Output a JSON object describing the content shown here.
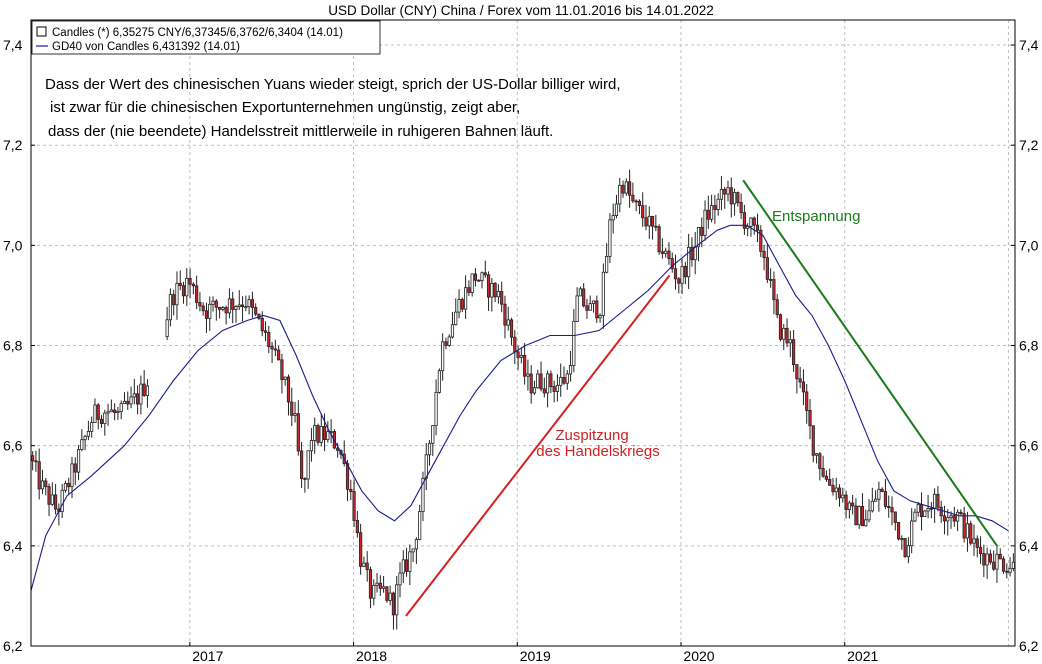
{
  "chart_data": {
    "type": "candlestick",
    "title": "USD Dollar (CNY) China / Forex vom 11.01.2016 bis 14.01.2022",
    "legend": [
      {
        "label": "Candles (*) 6,35275 CNY/6,37345/6,3762/6,3404 (14.01)",
        "color": "#000000",
        "symbol": "box"
      },
      {
        "label": "GD40 von Candles 6,431392 (14.01)",
        "color": "#1a1a8c",
        "symbol": "line"
      }
    ],
    "legend_placement": "top-left",
    "grid": true,
    "x_range": [
      2016.03,
      2022.04
    ],
    "ylim": [
      6.2,
      7.45
    ],
    "x_ticks": [
      {
        "x": 2017,
        "label": "2017"
      },
      {
        "x": 2018,
        "label": "2018"
      },
      {
        "x": 2019,
        "label": "2019"
      },
      {
        "x": 2020,
        "label": "2020"
      },
      {
        "x": 2021,
        "label": "2021"
      }
    ],
    "x_gridlines": [
      2017,
      2018,
      2019,
      2020,
      2021,
      2022
    ],
    "y_ticks": [
      {
        "y": 6.2,
        "label": "6,2"
      },
      {
        "y": 6.4,
        "label": "6,4"
      },
      {
        "y": 6.6,
        "label": "6,6"
      },
      {
        "y": 6.8,
        "label": "6,8"
      },
      {
        "y": 7.0,
        "label": "7,0"
      },
      {
        "y": 7.2,
        "label": "7,2"
      },
      {
        "y": 7.4,
        "label": "7,4"
      }
    ],
    "anchors": [
      [
        2016.03,
        6.58
      ],
      [
        2016.1,
        6.52
      ],
      [
        2016.2,
        6.47
      ],
      [
        2016.3,
        6.55
      ],
      [
        2016.42,
        6.66
      ],
      [
        2016.5,
        6.67
      ],
      [
        2016.58,
        6.66
      ],
      [
        2016.7,
        6.7
      ],
      [
        2016.8,
        6.76
      ],
      [
        2016.9,
        6.9
      ],
      [
        2017.0,
        6.93
      ],
      [
        2017.1,
        6.87
      ],
      [
        2017.2,
        6.88
      ],
      [
        2017.35,
        6.89
      ],
      [
        2017.42,
        6.85
      ],
      [
        2017.5,
        6.8
      ],
      [
        2017.58,
        6.73
      ],
      [
        2017.65,
        6.65
      ],
      [
        2017.7,
        6.5
      ],
      [
        2017.75,
        6.62
      ],
      [
        2017.85,
        6.62
      ],
      [
        2017.92,
        6.6
      ],
      [
        2018.0,
        6.5
      ],
      [
        2018.05,
        6.38
      ],
      [
        2018.12,
        6.3
      ],
      [
        2018.2,
        6.31
      ],
      [
        2018.25,
        6.28
      ],
      [
        2018.3,
        6.34
      ],
      [
        2018.38,
        6.4
      ],
      [
        2018.45,
        6.55
      ],
      [
        2018.55,
        6.8
      ],
      [
        2018.65,
        6.88
      ],
      [
        2018.75,
        6.94
      ],
      [
        2018.82,
        6.92
      ],
      [
        2018.9,
        6.9
      ],
      [
        2019.0,
        6.79
      ],
      [
        2019.08,
        6.72
      ],
      [
        2019.15,
        6.73
      ],
      [
        2019.25,
        6.72
      ],
      [
        2019.32,
        6.74
      ],
      [
        2019.38,
        6.9
      ],
      [
        2019.45,
        6.87
      ],
      [
        2019.52,
        6.88
      ],
      [
        2019.58,
        7.05
      ],
      [
        2019.65,
        7.13
      ],
      [
        2019.72,
        7.08
      ],
      [
        2019.8,
        7.05
      ],
      [
        2019.88,
        7.0
      ],
      [
        2019.95,
        6.96
      ],
      [
        2020.0,
        6.93
      ],
      [
        2020.05,
        6.97
      ],
      [
        2020.1,
        7.0
      ],
      [
        2020.15,
        7.05
      ],
      [
        2020.22,
        7.08
      ],
      [
        2020.3,
        7.11
      ],
      [
        2020.38,
        7.06
      ],
      [
        2020.45,
        7.03
      ],
      [
        2020.52,
        6.98
      ],
      [
        2020.6,
        6.84
      ],
      [
        2020.68,
        6.8
      ],
      [
        2020.75,
        6.7
      ],
      [
        2020.82,
        6.6
      ],
      [
        2020.9,
        6.53
      ],
      [
        2020.98,
        6.51
      ],
      [
        2021.05,
        6.46
      ],
      [
        2021.15,
        6.46
      ],
      [
        2021.22,
        6.51
      ],
      [
        2021.3,
        6.46
      ],
      [
        2021.38,
        6.4
      ],
      [
        2021.45,
        6.47
      ],
      [
        2021.55,
        6.49
      ],
      [
        2021.62,
        6.47
      ],
      [
        2021.7,
        6.46
      ],
      [
        2021.75,
        6.43
      ],
      [
        2021.82,
        6.39
      ],
      [
        2021.88,
        6.38
      ],
      [
        2021.95,
        6.37
      ],
      [
        2022.04,
        6.36
      ]
    ],
    "ma_line": {
      "name": "GD40 von Candles",
      "points": [
        [
          2016.03,
          6.31
        ],
        [
          2016.12,
          6.42
        ],
        [
          2016.25,
          6.5
        ],
        [
          2016.4,
          6.54
        ],
        [
          2016.6,
          6.6
        ],
        [
          2016.75,
          6.66
        ],
        [
          2016.9,
          6.73
        ],
        [
          2017.05,
          6.79
        ],
        [
          2017.2,
          6.83
        ],
        [
          2017.35,
          6.85
        ],
        [
          2017.45,
          6.86
        ],
        [
          2017.55,
          6.85
        ],
        [
          2017.65,
          6.78
        ],
        [
          2017.75,
          6.7
        ],
        [
          2017.85,
          6.63
        ],
        [
          2017.95,
          6.57
        ],
        [
          2018.05,
          6.51
        ],
        [
          2018.15,
          6.47
        ],
        [
          2018.25,
          6.45
        ],
        [
          2018.35,
          6.48
        ],
        [
          2018.45,
          6.54
        ],
        [
          2018.55,
          6.6
        ],
        [
          2018.65,
          6.66
        ],
        [
          2018.75,
          6.71
        ],
        [
          2018.9,
          6.77
        ],
        [
          2019.05,
          6.8
        ],
        [
          2019.2,
          6.82
        ],
        [
          2019.35,
          6.82
        ],
        [
          2019.5,
          6.83
        ],
        [
          2019.65,
          6.87
        ],
        [
          2019.8,
          6.91
        ],
        [
          2019.95,
          6.96
        ],
        [
          2020.1,
          7.0
        ],
        [
          2020.22,
          7.03
        ],
        [
          2020.3,
          7.04
        ],
        [
          2020.4,
          7.04
        ],
        [
          2020.5,
          7.02
        ],
        [
          2020.6,
          6.96
        ],
        [
          2020.7,
          6.9
        ],
        [
          2020.8,
          6.86
        ],
        [
          2020.9,
          6.8
        ],
        [
          2021.0,
          6.73
        ],
        [
          2021.1,
          6.65
        ],
        [
          2021.2,
          6.57
        ],
        [
          2021.3,
          6.51
        ],
        [
          2021.4,
          6.49
        ],
        [
          2021.5,
          6.48
        ],
        [
          2021.6,
          6.47
        ],
        [
          2021.7,
          6.46
        ],
        [
          2021.8,
          6.46
        ],
        [
          2021.9,
          6.45
        ],
        [
          2022.0,
          6.43
        ]
      ]
    },
    "gap": [
      2016.76,
      2016.86
    ],
    "candle_count": 300,
    "annotations": {
      "intro_lines": [
        "Dass der Wert des chinesischen Yuans wieder steigt, sprich der US-Dollar billiger wird,",
        "ist zwar für die chinesischen Exportunternehmen ungünstig, zeigt aber,",
        "dass der (nie beendete) Handelsstreit mittlerweile in ruhigeren Bahnen läuft."
      ],
      "entspannung": "Entspannung",
      "zuspitzung_lines": [
        "Zuspitzung",
        "des Handelskriegs"
      ]
    },
    "trend_lines": [
      {
        "name": "zuspitzung",
        "from": [
          2018.32,
          6.26
        ],
        "to": [
          2019.93,
          6.94
        ],
        "color": "#d42020"
      },
      {
        "name": "entspannung",
        "from": [
          2020.38,
          7.13
        ],
        "to": [
          2021.93,
          6.4
        ],
        "color": "#1a7a1a"
      }
    ],
    "colors": {
      "up_body": "#ffffff",
      "down_body": "#c8282c",
      "wick": "#222222",
      "grid": "#bfbfbf",
      "frame": "#000000",
      "ma": "#1a1a8c",
      "zuspitzung_text": "#d42020",
      "entspannung_text": "#1a7a1a"
    }
  }
}
